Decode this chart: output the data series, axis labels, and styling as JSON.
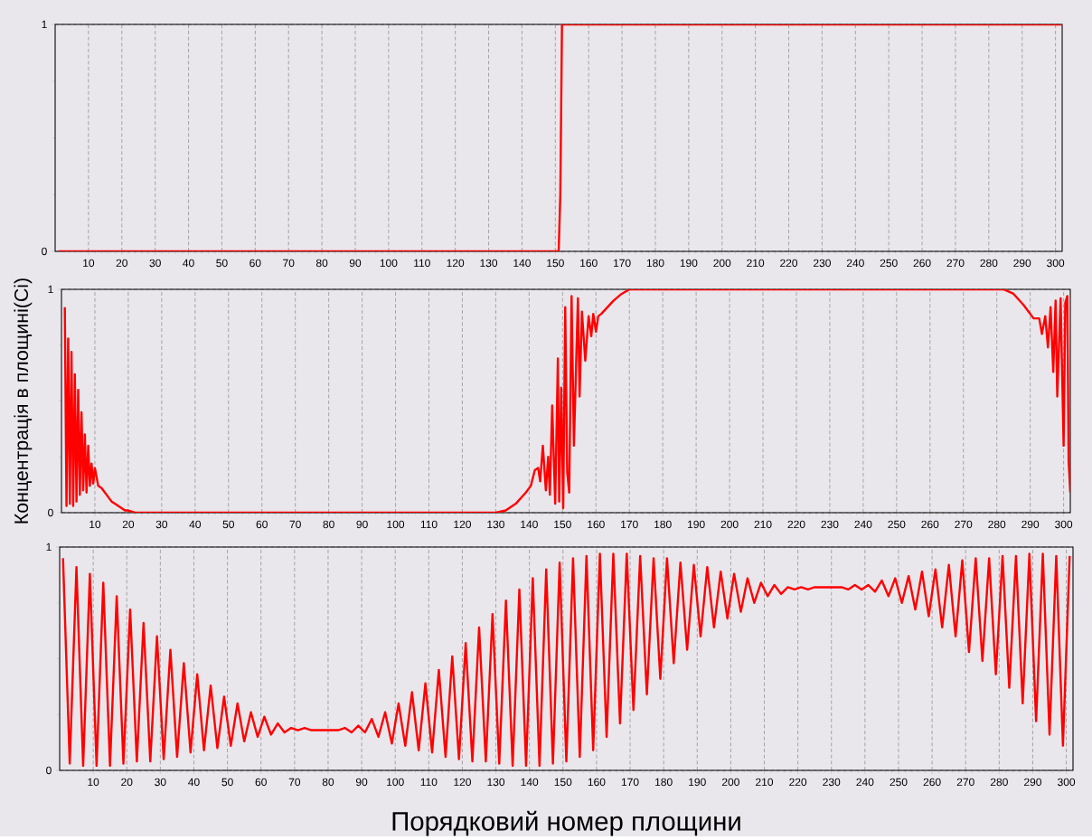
{
  "chart_data": [
    {
      "type": "line",
      "color": "#ff0000",
      "grid": true,
      "xlim": [
        0,
        302
      ],
      "ylim": [
        0,
        1
      ],
      "xticks": [
        10,
        20,
        30,
        40,
        50,
        60,
        70,
        80,
        90,
        100,
        110,
        120,
        130,
        140,
        150,
        160,
        170,
        180,
        190,
        200,
        210,
        220,
        230,
        240,
        250,
        260,
        270,
        280,
        290,
        300
      ],
      "yticks": [
        0,
        1
      ],
      "x": [
        1,
        151,
        151.5,
        152,
        302
      ],
      "values": [
        0,
        0,
        0.25,
        1,
        1
      ]
    },
    {
      "type": "line",
      "color": "#ff0000",
      "grid": true,
      "ylabel": "Концентрація в площині(Ci)",
      "xlim": [
        0,
        302
      ],
      "ylim": [
        0,
        1
      ],
      "xticks": [
        10,
        20,
        30,
        40,
        50,
        60,
        70,
        80,
        90,
        100,
        110,
        120,
        130,
        140,
        150,
        160,
        170,
        180,
        190,
        200,
        210,
        220,
        230,
        240,
        250,
        260,
        270,
        280,
        290,
        300
      ],
      "yticks": [
        0,
        1
      ],
      "x": [
        1,
        1.5,
        2,
        2.5,
        3,
        3.5,
        4,
        4.5,
        5,
        5.5,
        6,
        6.5,
        7,
        7.5,
        8,
        8.5,
        9,
        9.5,
        10,
        11,
        12,
        13,
        14,
        15,
        16,
        17,
        18,
        19,
        20,
        22,
        130,
        133,
        136,
        139,
        140.5,
        141.7,
        142.7,
        143.3,
        144.1,
        145,
        145.7,
        146.2,
        146.9,
        147.8,
        148.6,
        149,
        149.6,
        150.2,
        150.8,
        151.4,
        152,
        152.7,
        153.4,
        154.6,
        155.1,
        155.8,
        156.8,
        157.8,
        158.6,
        159.2,
        160,
        160.7,
        161.6,
        165.3,
        167.7,
        170.1,
        172.5,
        282,
        285,
        288,
        291,
        292.7,
        293.5,
        294.5,
        295.3,
        296.1,
        296.9,
        297.6,
        298.1,
        299.1,
        300,
        300.5,
        301.1,
        301.5,
        302
      ],
      "values": [
        0.92,
        0.03,
        0.78,
        0.04,
        0.72,
        0.03,
        0.62,
        0.05,
        0.55,
        0.08,
        0.45,
        0.1,
        0.35,
        0.09,
        0.3,
        0.12,
        0.22,
        0.13,
        0.2,
        0.12,
        0.11,
        0.09,
        0.07,
        0.05,
        0.04,
        0.03,
        0.02,
        0.01,
        0.01,
        0,
        0,
        0.01,
        0.04,
        0.09,
        0.12,
        0.19,
        0.2,
        0.14,
        0.3,
        0.1,
        0.25,
        0.08,
        0.48,
        0.04,
        0.69,
        0.05,
        0.56,
        0.02,
        0.92,
        0.18,
        0.09,
        0.97,
        0.3,
        0.96,
        0.52,
        0.9,
        0.68,
        0.88,
        0.79,
        0.89,
        0.81,
        0.88,
        0.89,
        0.95,
        0.98,
        1,
        1,
        1,
        0.98,
        0.93,
        0.87,
        0.87,
        0.8,
        0.88,
        0.74,
        0.92,
        0.63,
        0.95,
        0.52,
        0.96,
        0.3,
        0.94,
        0.97,
        0.23,
        0.09
      ]
    },
    {
      "type": "line",
      "color": "#ff0000",
      "grid": true,
      "xlabel": "Порядковий номер площини",
      "xlim": [
        0,
        302
      ],
      "ylim": [
        0,
        1
      ],
      "xticks": [
        10,
        20,
        30,
        40,
        50,
        60,
        70,
        80,
        90,
        100,
        110,
        120,
        130,
        140,
        150,
        160,
        170,
        180,
        190,
        200,
        210,
        220,
        230,
        240,
        250,
        260,
        270,
        280,
        290,
        300
      ],
      "yticks": [
        0,
        1
      ],
      "x": [
        1,
        3,
        5,
        7,
        9,
        11,
        13,
        15,
        17,
        19,
        21,
        23,
        25,
        27,
        29,
        31,
        33,
        35,
        37,
        39,
        41,
        43,
        45,
        47,
        49,
        51,
        53,
        55,
        57,
        59,
        61,
        63,
        65,
        67,
        69,
        71,
        73,
        75,
        77,
        79,
        81,
        83,
        85,
        87,
        89,
        91,
        93,
        95,
        97,
        99,
        101,
        103,
        105,
        107,
        109,
        111,
        113,
        115,
        117,
        119,
        121,
        123,
        125,
        127,
        129,
        131,
        133,
        135,
        137,
        139,
        141,
        143,
        145,
        147,
        149,
        151,
        153,
        155,
        157,
        159,
        161,
        163,
        165,
        167,
        169,
        171,
        173,
        175,
        177,
        179,
        181,
        183,
        185,
        187,
        189,
        191,
        193,
        195,
        197,
        199,
        201,
        203,
        205,
        207,
        209,
        211,
        213,
        215,
        217,
        219,
        221,
        223,
        225,
        227,
        229,
        231,
        233,
        235,
        237,
        239,
        241,
        243,
        245,
        247,
        249,
        251,
        253,
        255,
        257,
        259,
        261,
        263,
        265,
        267,
        269,
        271,
        273,
        275,
        277,
        279,
        281,
        283,
        285,
        287,
        289,
        291,
        293,
        295,
        297,
        299,
        301
      ],
      "values": [
        0.95,
        0.03,
        0.91,
        0.02,
        0.88,
        0.02,
        0.84,
        0.02,
        0.78,
        0.03,
        0.72,
        0.04,
        0.66,
        0.04,
        0.6,
        0.05,
        0.54,
        0.06,
        0.48,
        0.08,
        0.43,
        0.09,
        0.38,
        0.1,
        0.33,
        0.11,
        0.3,
        0.13,
        0.26,
        0.15,
        0.24,
        0.16,
        0.21,
        0.17,
        0.19,
        0.18,
        0.19,
        0.18,
        0.18,
        0.18,
        0.18,
        0.18,
        0.19,
        0.17,
        0.2,
        0.17,
        0.23,
        0.15,
        0.26,
        0.12,
        0.3,
        0.11,
        0.35,
        0.09,
        0.39,
        0.08,
        0.45,
        0.06,
        0.51,
        0.05,
        0.57,
        0.04,
        0.64,
        0.04,
        0.7,
        0.03,
        0.76,
        0.02,
        0.81,
        0.02,
        0.86,
        0.02,
        0.9,
        0.03,
        0.93,
        0.04,
        0.95,
        0.06,
        0.96,
        0.09,
        0.97,
        0.15,
        0.97,
        0.21,
        0.97,
        0.27,
        0.96,
        0.34,
        0.95,
        0.41,
        0.95,
        0.48,
        0.93,
        0.54,
        0.92,
        0.6,
        0.91,
        0.64,
        0.89,
        0.68,
        0.88,
        0.71,
        0.86,
        0.75,
        0.84,
        0.78,
        0.83,
        0.79,
        0.82,
        0.81,
        0.82,
        0.81,
        0.82,
        0.82,
        0.82,
        0.82,
        0.82,
        0.81,
        0.83,
        0.81,
        0.83,
        0.8,
        0.85,
        0.78,
        0.86,
        0.75,
        0.87,
        0.72,
        0.89,
        0.69,
        0.9,
        0.64,
        0.92,
        0.6,
        0.94,
        0.53,
        0.95,
        0.49,
        0.95,
        0.43,
        0.96,
        0.37,
        0.96,
        0.3,
        0.97,
        0.22,
        0.97,
        0.16,
        0.96,
        0.11,
        0.96
      ]
    }
  ]
}
